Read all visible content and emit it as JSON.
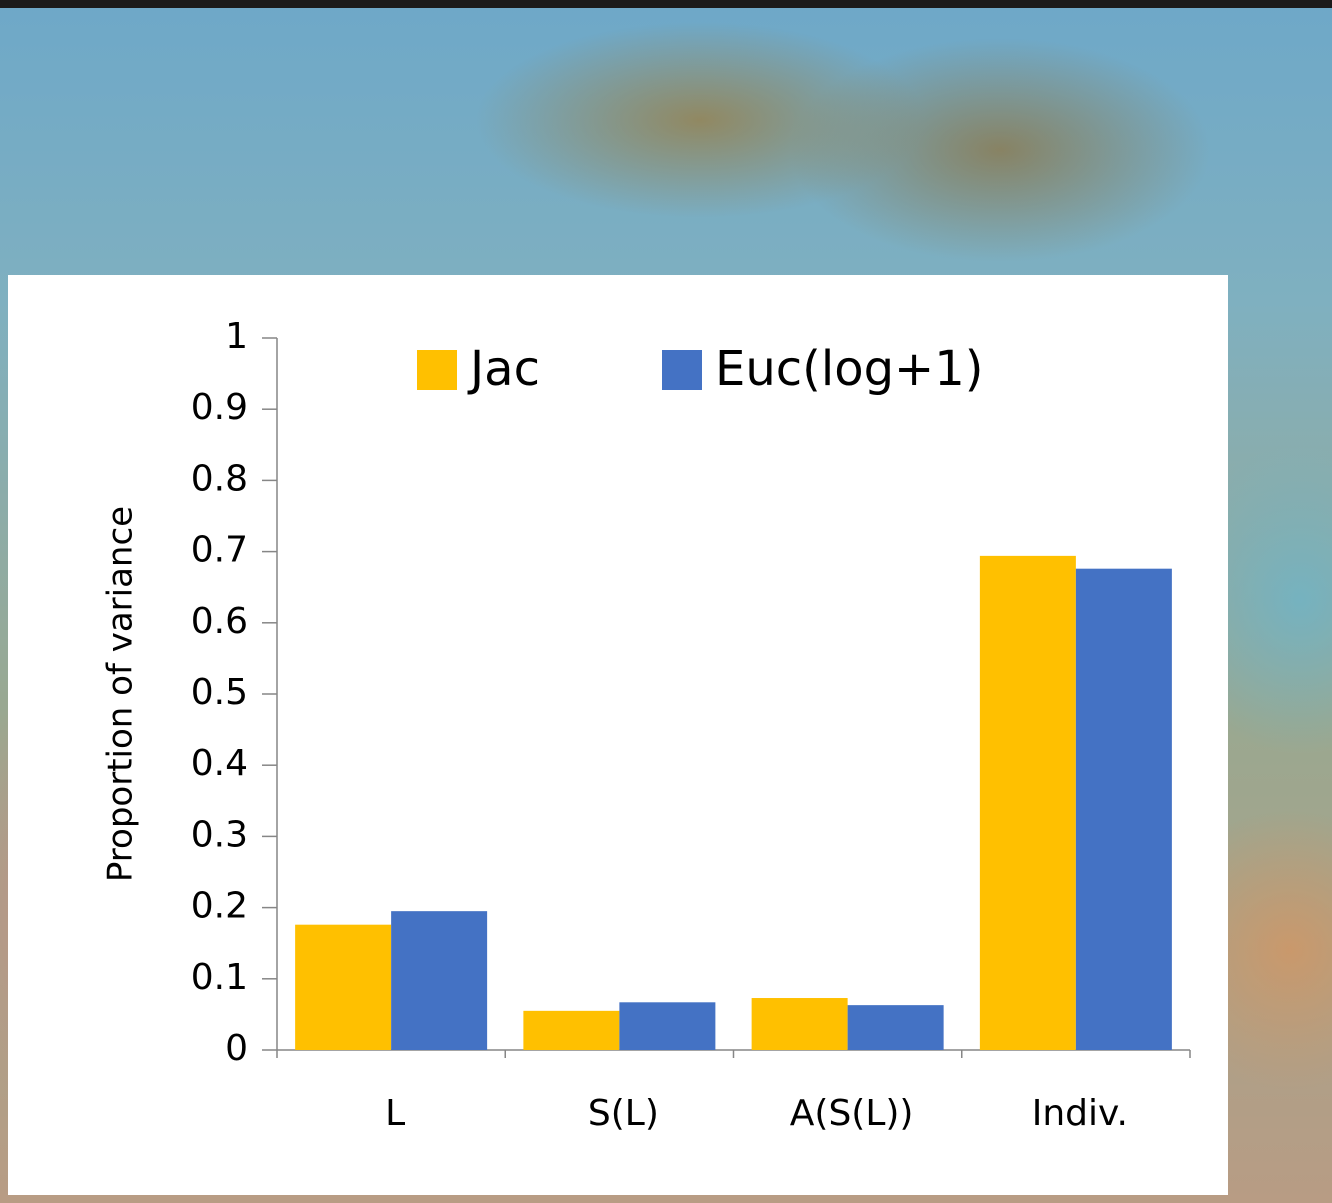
{
  "chart_data": {
    "type": "bar",
    "y_label": "Proportion of variance",
    "categories": [
      "L",
      "S(L)",
      "A(S(L))",
      "Indiv."
    ],
    "series": [
      {
        "name": "Jac",
        "color": "#ffc000",
        "values": [
          0.176,
          0.055,
          0.073,
          0.694
        ]
      },
      {
        "name": "Euc(log+1)",
        "color": "#4472c4",
        "values": [
          0.195,
          0.067,
          0.063,
          0.676
        ]
      }
    ],
    "ylim": [
      0,
      1
    ],
    "yticks": [
      0,
      0.1,
      0.2,
      0.3,
      0.4,
      0.5,
      0.6,
      0.7,
      0.8,
      0.9,
      1
    ],
    "legend": "top",
    "grid": false
  }
}
